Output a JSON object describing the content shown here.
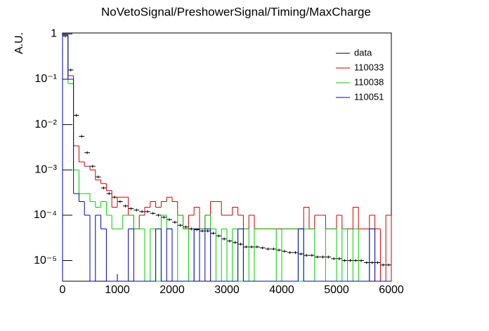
{
  "chart_data": {
    "type": "histogram",
    "title": "NoVetoSignal/PreshowerSignal/Timing/MaxCharge",
    "y_label": "A.U.",
    "log_y": true,
    "legend": "top-right",
    "bins": [
      0,
      100,
      200,
      300,
      400,
      500,
      600,
      700,
      800,
      900,
      1000,
      1100,
      1200,
      1300,
      1400,
      1500,
      1600,
      1700,
      1800,
      1900,
      2000,
      2100,
      2200,
      2300,
      2400,
      2500,
      2600,
      2700,
      2800,
      2900,
      3000,
      3100,
      3200,
      3300,
      3400,
      3500,
      3600,
      3700,
      3800,
      3900,
      4000,
      4100,
      4200,
      4300,
      4400,
      4500,
      4600,
      4700,
      4800,
      4900,
      5000,
      5100,
      5200,
      5300,
      5400,
      5500,
      5600,
      5700,
      5800,
      5900,
      6000
    ],
    "xlim": [
      0,
      6000
    ],
    "xticks": [
      0,
      1000,
      2000,
      3000,
      4000,
      5000,
      6000
    ],
    "ylim": [
      3.5e-06,
      1.05
    ],
    "yticks": [
      {
        "value": 1e-05,
        "label": "10⁻⁵"
      },
      {
        "value": 0.0001,
        "label": "10⁻⁴"
      },
      {
        "value": 0.001,
        "label": "10⁻³"
      },
      {
        "value": 0.01,
        "label": "10⁻²"
      },
      {
        "value": 0.1,
        "label": "10⁻¹"
      },
      1
    ],
    "series": [
      {
        "name": "data",
        "color": "#000000",
        "style": "points",
        "values": [
          0.9,
          0.16,
          0.016,
          0.0055,
          0.0024,
          0.0012,
          0.0007,
          0.0004,
          0.0003,
          0.00025,
          0.0002,
          0.00016,
          0.00014,
          0.00013,
          0.00012,
          0.00012,
          0.00011,
          0.0001,
          9e-05,
          8e-05,
          7e-05,
          6e-05,
          5.5e-05,
          5e-05,
          4.8e-05,
          4.5e-05,
          4.5e-05,
          4e-05,
          3.5e-05,
          3e-05,
          2.7e-05,
          2.5e-05,
          2.3e-05,
          2e-05,
          2e-05,
          2e-05,
          1.9e-05,
          1.8e-05,
          1.8e-05,
          1.7e-05,
          1.6e-05,
          1.5e-05,
          1.5e-05,
          1.4e-05,
          1.3e-05,
          1.3e-05,
          1.2e-05,
          1.2e-05,
          1.2e-05,
          1.1e-05,
          1.1e-05,
          1e-05,
          1e-05,
          1e-05,
          1e-05,
          9e-06,
          9e-06,
          9e-06,
          8e-06,
          8e-06
        ]
      },
      {
        "name": "110033",
        "color": "#cc0000",
        "style": "step",
        "values": [
          0.9,
          0.12,
          0.0034,
          0.0015,
          0.0012,
          0.001,
          0.0006,
          0.0005,
          0.00035,
          0.00015,
          0.00025,
          0.00025,
          0.0001,
          5e-05,
          0.0001,
          0.00015,
          0.0002,
          0.00015,
          0.0002,
          0.00025,
          0.0002,
          0.0001,
          5e-05,
          0.0001,
          0.00015,
          5e-05,
          0.0001,
          0.0002,
          0.0002,
          0.0001,
          0.0001,
          0.00015,
          0.0001,
          5e-05,
          0.0001,
          5e-05,
          5e-05,
          5e-05,
          5e-05,
          5e-05,
          5e-05,
          5e-05,
          5e-05,
          5e-05,
          0.00015,
          5e-05,
          0.0001,
          0.0001,
          5e-05,
          5e-05,
          0.0001,
          5e-05,
          5e-05,
          0.00015,
          5e-05,
          5e-05,
          0.0001,
          5e-05,
          0,
          0.0001
        ]
      },
      {
        "name": "110038",
        "color": "#00cc00",
        "style": "step",
        "values": [
          0.92,
          0.08,
          0.001,
          0.0003,
          0.0003,
          0.0002,
          0.00015,
          0.0002,
          0.0001,
          5e-05,
          5e-05,
          0.0001,
          0.0001,
          5e-05,
          5e-05,
          0,
          5e-05,
          0,
          0.0001,
          5e-05,
          0,
          0.0001,
          5e-05,
          0,
          5e-05,
          5e-05,
          0.0001,
          5e-05,
          0,
          5e-05,
          0,
          5e-05,
          0,
          5e-05,
          0,
          5e-05,
          5e-05,
          5e-05,
          5e-05,
          0,
          5e-05,
          5e-05,
          5e-05,
          0,
          5e-05,
          5e-05,
          0,
          0,
          5e-05,
          5e-05,
          0,
          5e-05,
          0,
          5e-05,
          0,
          0,
          5e-05,
          0,
          0,
          0
        ]
      },
      {
        "name": "110051",
        "color": "#0000bb",
        "style": "step",
        "values": [
          0.95,
          0.1,
          0.0003,
          0.0002,
          0.0001,
          0,
          0.0001,
          5e-05,
          0,
          0,
          0,
          0,
          5e-05,
          0,
          0,
          0,
          0,
          5e-05,
          0,
          5e-05,
          0,
          0,
          0,
          0,
          5e-05,
          0,
          5e-05,
          0,
          0,
          0,
          0,
          0,
          5e-05,
          0,
          0,
          0,
          0,
          0,
          0,
          0,
          0,
          0,
          0,
          5e-05,
          0,
          0,
          0,
          0,
          0,
          0,
          0,
          0,
          0,
          0,
          0,
          0,
          5e-05,
          0,
          0,
          0
        ]
      }
    ]
  }
}
